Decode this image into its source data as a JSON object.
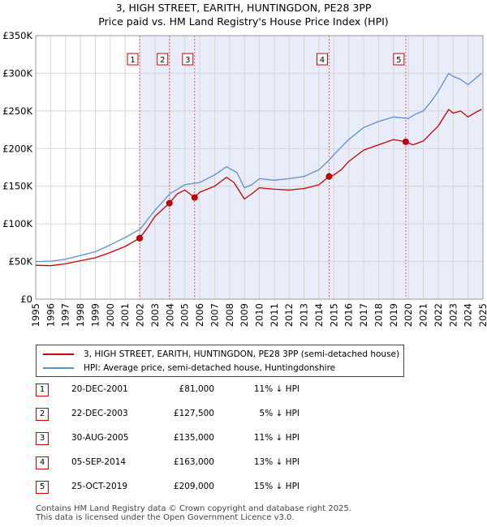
{
  "chart_data": {
    "type": "line",
    "title": "3, HIGH STREET, EARITH, HUNTINGDON, PE28 3PP",
    "subtitle": "Price paid vs. HM Land Registry's House Price Index (HPI)",
    "x_range": [
      1995,
      2025
    ],
    "ylim": [
      0,
      350000
    ],
    "y_ticks": [
      {
        "value": 0,
        "label": "£0"
      },
      {
        "value": 50000,
        "label": "£50K"
      },
      {
        "value": 100000,
        "label": "£100K"
      },
      {
        "value": 150000,
        "label": "£150K"
      },
      {
        "value": 200000,
        "label": "£200K"
      },
      {
        "value": 250000,
        "label": "£250K"
      },
      {
        "value": 300000,
        "label": "£300K"
      },
      {
        "value": 350000,
        "label": "£350K"
      }
    ],
    "x_ticks": [
      "1995",
      "1996",
      "1997",
      "1998",
      "1999",
      "2000",
      "2001",
      "2002",
      "2003",
      "2004",
      "2005",
      "2006",
      "2007",
      "2008",
      "2009",
      "2010",
      "2011",
      "2012",
      "2013",
      "2014",
      "2015",
      "2016",
      "2017",
      "2018",
      "2019",
      "2020",
      "2021",
      "2022",
      "2023",
      "2024",
      "2025"
    ],
    "grid": true,
    "series": [
      {
        "name": "3, HIGH STREET, EARITH, HUNTINGDON, PE28 3PP (semi-detached house)",
        "color": "#cc0000",
        "points": [
          [
            1995.0,
            45000
          ],
          [
            1996.0,
            44500
          ],
          [
            1997.0,
            47000
          ],
          [
            1998.0,
            51000
          ],
          [
            1999.0,
            55000
          ],
          [
            2000.0,
            62000
          ],
          [
            2001.0,
            70000
          ],
          [
            2001.97,
            81000
          ],
          [
            2002.5,
            95000
          ],
          [
            2003.0,
            110000
          ],
          [
            2003.97,
            127500
          ],
          [
            2004.5,
            140000
          ],
          [
            2005.0,
            145000
          ],
          [
            2005.66,
            135000
          ],
          [
            2006.0,
            142000
          ],
          [
            2007.0,
            150000
          ],
          [
            2007.8,
            162000
          ],
          [
            2008.3,
            155000
          ],
          [
            2009.0,
            133000
          ],
          [
            2009.5,
            140000
          ],
          [
            2010.0,
            148000
          ],
          [
            2011.0,
            146000
          ],
          [
            2012.0,
            145000
          ],
          [
            2013.0,
            147000
          ],
          [
            2014.0,
            152000
          ],
          [
            2014.68,
            163000
          ],
          [
            2015.0,
            165000
          ],
          [
            2015.5,
            172000
          ],
          [
            2016.0,
            183000
          ],
          [
            2017.0,
            198000
          ],
          [
            2018.0,
            205000
          ],
          [
            2019.0,
            212000
          ],
          [
            2019.82,
            209000
          ],
          [
            2020.3,
            205000
          ],
          [
            2021.0,
            210000
          ],
          [
            2021.5,
            220000
          ],
          [
            2022.0,
            230000
          ],
          [
            2022.7,
            252000
          ],
          [
            2023.0,
            247000
          ],
          [
            2023.5,
            250000
          ],
          [
            2024.0,
            242000
          ],
          [
            2024.5,
            248000
          ],
          [
            2024.9,
            252000
          ]
        ]
      },
      {
        "name": "HPI: Average price, semi-detached house, Huntingdonshire",
        "color": "#5b8fd0",
        "points": [
          [
            1995.0,
            50000
          ],
          [
            1996.0,
            50500
          ],
          [
            1997.0,
            53000
          ],
          [
            1998.0,
            58000
          ],
          [
            1999.0,
            63000
          ],
          [
            2000.0,
            72000
          ],
          [
            2001.0,
            82000
          ],
          [
            2002.0,
            93000
          ],
          [
            2003.0,
            118000
          ],
          [
            2004.0,
            140000
          ],
          [
            2005.0,
            152000
          ],
          [
            2006.0,
            155000
          ],
          [
            2007.0,
            165000
          ],
          [
            2007.8,
            176000
          ],
          [
            2008.5,
            168000
          ],
          [
            2009.0,
            148000
          ],
          [
            2009.5,
            152000
          ],
          [
            2010.0,
            160000
          ],
          [
            2011.0,
            158000
          ],
          [
            2012.0,
            160000
          ],
          [
            2013.0,
            163000
          ],
          [
            2014.0,
            172000
          ],
          [
            2014.7,
            185000
          ],
          [
            2015.0,
            192000
          ],
          [
            2016.0,
            212000
          ],
          [
            2017.0,
            228000
          ],
          [
            2018.0,
            236000
          ],
          [
            2019.0,
            242000
          ],
          [
            2020.0,
            240000
          ],
          [
            2020.5,
            246000
          ],
          [
            2021.0,
            250000
          ],
          [
            2021.5,
            262000
          ],
          [
            2022.0,
            276000
          ],
          [
            2022.7,
            300000
          ],
          [
            2023.0,
            296000
          ],
          [
            2023.5,
            292000
          ],
          [
            2024.0,
            285000
          ],
          [
            2024.5,
            293000
          ],
          [
            2024.9,
            300000
          ]
        ]
      }
    ],
    "sales": [
      {
        "n": "1",
        "year": 2001.97,
        "price": 81000
      },
      {
        "n": "2",
        "year": 2003.97,
        "price": 127500
      },
      {
        "n": "3",
        "year": 2005.66,
        "price": 135000
      },
      {
        "n": "4",
        "year": 2014.68,
        "price": 163000
      },
      {
        "n": "5",
        "year": 2019.82,
        "price": 209000
      }
    ]
  },
  "legend": {
    "property": "3, HIGH STREET, EARITH, HUNTINGDON, PE28 3PP (semi-detached house)",
    "hpi": "HPI: Average price, semi-detached house, Huntingdonshire"
  },
  "sales_table": [
    {
      "n": "1",
      "date": "20-DEC-2001",
      "price": "£81,000",
      "hpi": "11% ↓ HPI"
    },
    {
      "n": "2",
      "date": "22-DEC-2003",
      "price": "£127,500",
      "hpi": "5% ↓ HPI"
    },
    {
      "n": "3",
      "date": "30-AUG-2005",
      "price": "£135,000",
      "hpi": "11% ↓ HPI"
    },
    {
      "n": "4",
      "date": "05-SEP-2014",
      "price": "£163,000",
      "hpi": "13% ↓ HPI"
    },
    {
      "n": "5",
      "date": "25-OCT-2019",
      "price": "£209,000",
      "hpi": "15% ↓ HPI"
    }
  ],
  "footer": {
    "line1": "Contains HM Land Registry data © Crown copyright and database right 2025.",
    "line2": "This data is licensed under the Open Government Licence v3.0."
  }
}
